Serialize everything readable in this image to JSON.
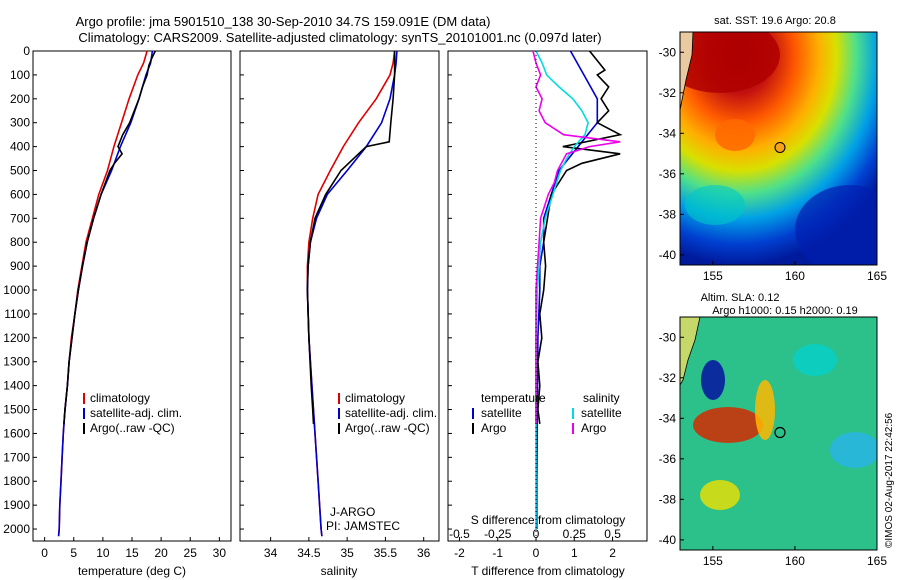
{
  "title_line1": "Argo profile: jma 5901510_138 30-Sep-2010 34.7S 159.091E (DM data)",
  "title_line2": "Climatology: CARS2009. Satellite-adjusted climatology: synTS_20101001.nc (0.097d later)",
  "credit_text": "©IMOS 02-Aug-2017 22:42:56",
  "colors": {
    "climatology": "#dd0000",
    "satellite": "#0000cc",
    "argo": "#000000",
    "s_satellite": "#00dddd",
    "s_argo": "#ee00ee",
    "marker": "#f7a21b"
  },
  "chart_data": [
    {
      "type": "line",
      "panel": "temperature",
      "xlabel": "temperature (deg C)",
      "ylabel": "",
      "xlim": [
        -2,
        32
      ],
      "ylim": [
        2050,
        0
      ],
      "x_ticks": [
        "0",
        "5",
        "10",
        "15",
        "20",
        "25",
        "30"
      ],
      "y_ticks": [
        "0",
        "100",
        "200",
        "300",
        "400",
        "500",
        "600",
        "700",
        "800",
        "900",
        "1000",
        "1100",
        "1200",
        "1300",
        "1400",
        "1500",
        "1600",
        "1700",
        "1800",
        "1900",
        "2000"
      ],
      "legend": [
        "climatology",
        "satellite-adj. clim.",
        "Argo(..raw -QC)"
      ],
      "legend_position": "lower-center",
      "series": [
        {
          "name": "climatology",
          "color": "#dd0000",
          "depth": [
            0,
            50,
            100,
            200,
            300,
            400,
            500,
            600,
            700,
            800,
            900,
            1000,
            1100,
            1200,
            1300,
            1400,
            1500,
            1600,
            1700,
            1800,
            1900,
            2000,
            2030
          ],
          "values": [
            17.6,
            17.0,
            16.0,
            14.5,
            13.2,
            11.9,
            10.8,
            9.3,
            8.2,
            7.1,
            6.4,
            5.7,
            5.2,
            4.6,
            4.2,
            3.9,
            3.5,
            3.2,
            3.0,
            2.8,
            2.6,
            2.5,
            2.4
          ]
        },
        {
          "name": "satellite-adj. clim.",
          "color": "#0000cc",
          "depth": [
            0,
            50,
            100,
            200,
            300,
            400,
            500,
            600,
            700,
            800,
            900,
            1000,
            1100,
            1200,
            1300,
            1400,
            1500,
            1600,
            1700,
            1800,
            1900,
            2000,
            2030
          ],
          "values": [
            18.5,
            18.2,
            17.4,
            16.2,
            14.8,
            13.0,
            11.5,
            9.7,
            8.4,
            7.3,
            6.5,
            5.8,
            5.2,
            4.7,
            4.2,
            3.9,
            3.5,
            3.2,
            3.0,
            2.8,
            2.6,
            2.5,
            2.4
          ]
        },
        {
          "name": "Argo(..raw -QC)",
          "color": "#000000",
          "depth": [
            0,
            30,
            60,
            100,
            150,
            200,
            250,
            300,
            350,
            400,
            430,
            470,
            500,
            600,
            700,
            800,
            900,
            1000,
            1100,
            1200,
            1300,
            1400,
            1500,
            1560
          ],
          "values": [
            19.0,
            18.4,
            17.9,
            17.6,
            16.8,
            16.2,
            15.4,
            14.6,
            13.4,
            12.6,
            13.3,
            12.0,
            11.2,
            9.7,
            8.4,
            7.3,
            6.5,
            5.8,
            5.2,
            4.7,
            4.2,
            3.9,
            3.5,
            3.3
          ]
        }
      ]
    },
    {
      "type": "line",
      "panel": "salinity",
      "xlabel": "salinity",
      "ylabel": "",
      "xlim": [
        33.6,
        36.2
      ],
      "ylim": [
        2050,
        0
      ],
      "x_ticks": [
        "34",
        "34.5",
        "35",
        "35.5",
        "36"
      ],
      "legend": [
        "climatology",
        "satellite-adj. clim.",
        "Argo(..raw -QC)"
      ],
      "legend_position": "lower-center",
      "annotations": [
        "J-ARGO",
        "PI: JAMSTEC"
      ],
      "series": [
        {
          "name": "climatology",
          "color": "#dd0000",
          "depth": [
            0,
            50,
            100,
            200,
            300,
            400,
            500,
            600,
            700,
            800,
            900,
            1000,
            1200,
            1400,
            1600,
            1800,
            2000,
            2030
          ],
          "values": [
            35.62,
            35.6,
            35.56,
            35.38,
            35.15,
            34.95,
            34.78,
            34.62,
            34.55,
            34.5,
            34.48,
            34.48,
            34.5,
            34.54,
            34.58,
            34.62,
            34.66,
            34.67
          ]
        },
        {
          "name": "satellite-adj. clim.",
          "color": "#0000cc",
          "depth": [
            0,
            50,
            100,
            200,
            300,
            400,
            500,
            600,
            700,
            800,
            900,
            1000,
            1200,
            1400,
            1600,
            1800,
            2000,
            2030
          ],
          "values": [
            35.65,
            35.64,
            35.62,
            35.56,
            35.45,
            35.25,
            35.0,
            34.74,
            34.6,
            34.52,
            34.49,
            34.48,
            34.5,
            34.54,
            34.58,
            34.62,
            34.66,
            34.67
          ]
        },
        {
          "name": "Argo(..raw -QC)",
          "color": "#000000",
          "depth": [
            0,
            100,
            200,
            300,
            380,
            400,
            430,
            500,
            600,
            700,
            800,
            900,
            1000,
            1200,
            1400,
            1500,
            1560
          ],
          "values": [
            35.62,
            35.62,
            35.6,
            35.57,
            35.55,
            35.25,
            35.15,
            34.92,
            34.72,
            34.58,
            34.52,
            34.49,
            34.48,
            34.5,
            34.53,
            34.55,
            34.56
          ]
        }
      ]
    },
    {
      "type": "line",
      "panel": "difference",
      "xlabel": "T difference from climatology",
      "x2label": "S difference from climatology",
      "xlim": [
        -2.3,
        2.9
      ],
      "x_ticks": [
        "-2",
        "-1",
        "0",
        "1",
        "2"
      ],
      "x2_ticks": [
        "-0.5",
        "-0.25",
        "0",
        "0.25",
        "0.5"
      ],
      "ylim": [
        2050,
        0
      ],
      "legend_left_title": "temperature",
      "legend_right_title": "salinity",
      "legend": [
        "satellite",
        "Argo",
        "satellite",
        "Argo"
      ],
      "series": [
        {
          "name": "satellite",
          "group": "temperature",
          "color": "#0000cc",
          "depth": [
            0,
            100,
            200,
            300,
            400,
            500,
            600,
            700,
            800,
            900,
            1000,
            1200,
            1400,
            1600,
            1800,
            2000
          ],
          "values": [
            0.9,
            1.25,
            1.6,
            1.6,
            1.1,
            0.6,
            0.4,
            0.2,
            0.2,
            0.1,
            0.1,
            0.05,
            0.04,
            0.03,
            0.02,
            0.02
          ]
        },
        {
          "name": "Argo",
          "group": "temperature",
          "color": "#000000",
          "depth": [
            0,
            40,
            80,
            100,
            150,
            200,
            250,
            300,
            350,
            400,
            430,
            470,
            500,
            600,
            700,
            800,
            900,
            1000,
            1100,
            1200,
            1300,
            1400,
            1500,
            1560
          ],
          "values": [
            1.4,
            1.6,
            1.8,
            1.6,
            1.9,
            1.7,
            1.9,
            1.6,
            2.2,
            0.7,
            2.2,
            1.2,
            0.8,
            0.4,
            0.3,
            0.2,
            0.25,
            0.2,
            0.1,
            0.15,
            0.05,
            0.1,
            0.05,
            0.1
          ]
        },
        {
          "name": "satellite",
          "group": "salinity",
          "color": "#00dddd",
          "depth": [
            0,
            50,
            100,
            150,
            200,
            250,
            300,
            350,
            400,
            450,
            500,
            600,
            700,
            800,
            900,
            1000,
            1200,
            1400,
            1600,
            1800,
            2000
          ],
          "values": [
            0.0,
            0.04,
            0.07,
            0.15,
            0.24,
            0.3,
            0.34,
            0.32,
            0.25,
            0.2,
            0.16,
            0.11,
            0.06,
            0.03,
            0.02,
            0.01,
            0.0,
            0.0,
            0.0,
            0.0,
            0.0
          ]
        },
        {
          "name": "Argo",
          "group": "salinity",
          "color": "#ee00ee",
          "depth": [
            0,
            50,
            100,
            150,
            200,
            250,
            300,
            350,
            380,
            400,
            430,
            500,
            550,
            600,
            700,
            800,
            900,
            1000,
            1100,
            1200,
            1300,
            1400,
            1500,
            1560
          ],
          "values": [
            -0.02,
            0.0,
            0.03,
            0.0,
            0.04,
            0.02,
            0.06,
            0.18,
            0.55,
            0.35,
            0.2,
            0.14,
            0.12,
            0.08,
            0.03,
            0.02,
            0.01,
            0.0,
            0.0,
            0.0,
            0.0,
            0.0,
            0.0,
            0.0
          ]
        }
      ]
    },
    {
      "type": "heatmap",
      "panel": "sst-map",
      "title": "sat. SST: 19.6  Argo: 20.8",
      "x_ticks": [
        "155",
        "160",
        "165"
      ],
      "y_ticks": [
        "-30",
        "-32",
        "-34",
        "-36",
        "-38",
        "-40"
      ],
      "xlim": [
        153,
        165
      ],
      "ylim": [
        -40.5,
        -29
      ],
      "marker": {
        "lon": 159.091,
        "lat": -34.7
      }
    },
    {
      "type": "heatmap",
      "panel": "sla-map",
      "title": "Altim. SLA: 0.12",
      "subtitle": "Argo h1000: 0.15  h2000: 0.19",
      "x_ticks": [
        "155",
        "160",
        "165"
      ],
      "y_ticks": [
        "-30",
        "-32",
        "-34",
        "-36",
        "-38",
        "-40"
      ],
      "xlim": [
        153,
        165
      ],
      "ylim": [
        -40.5,
        -29
      ],
      "marker": {
        "lon": 159.091,
        "lat": -34.7
      }
    }
  ]
}
